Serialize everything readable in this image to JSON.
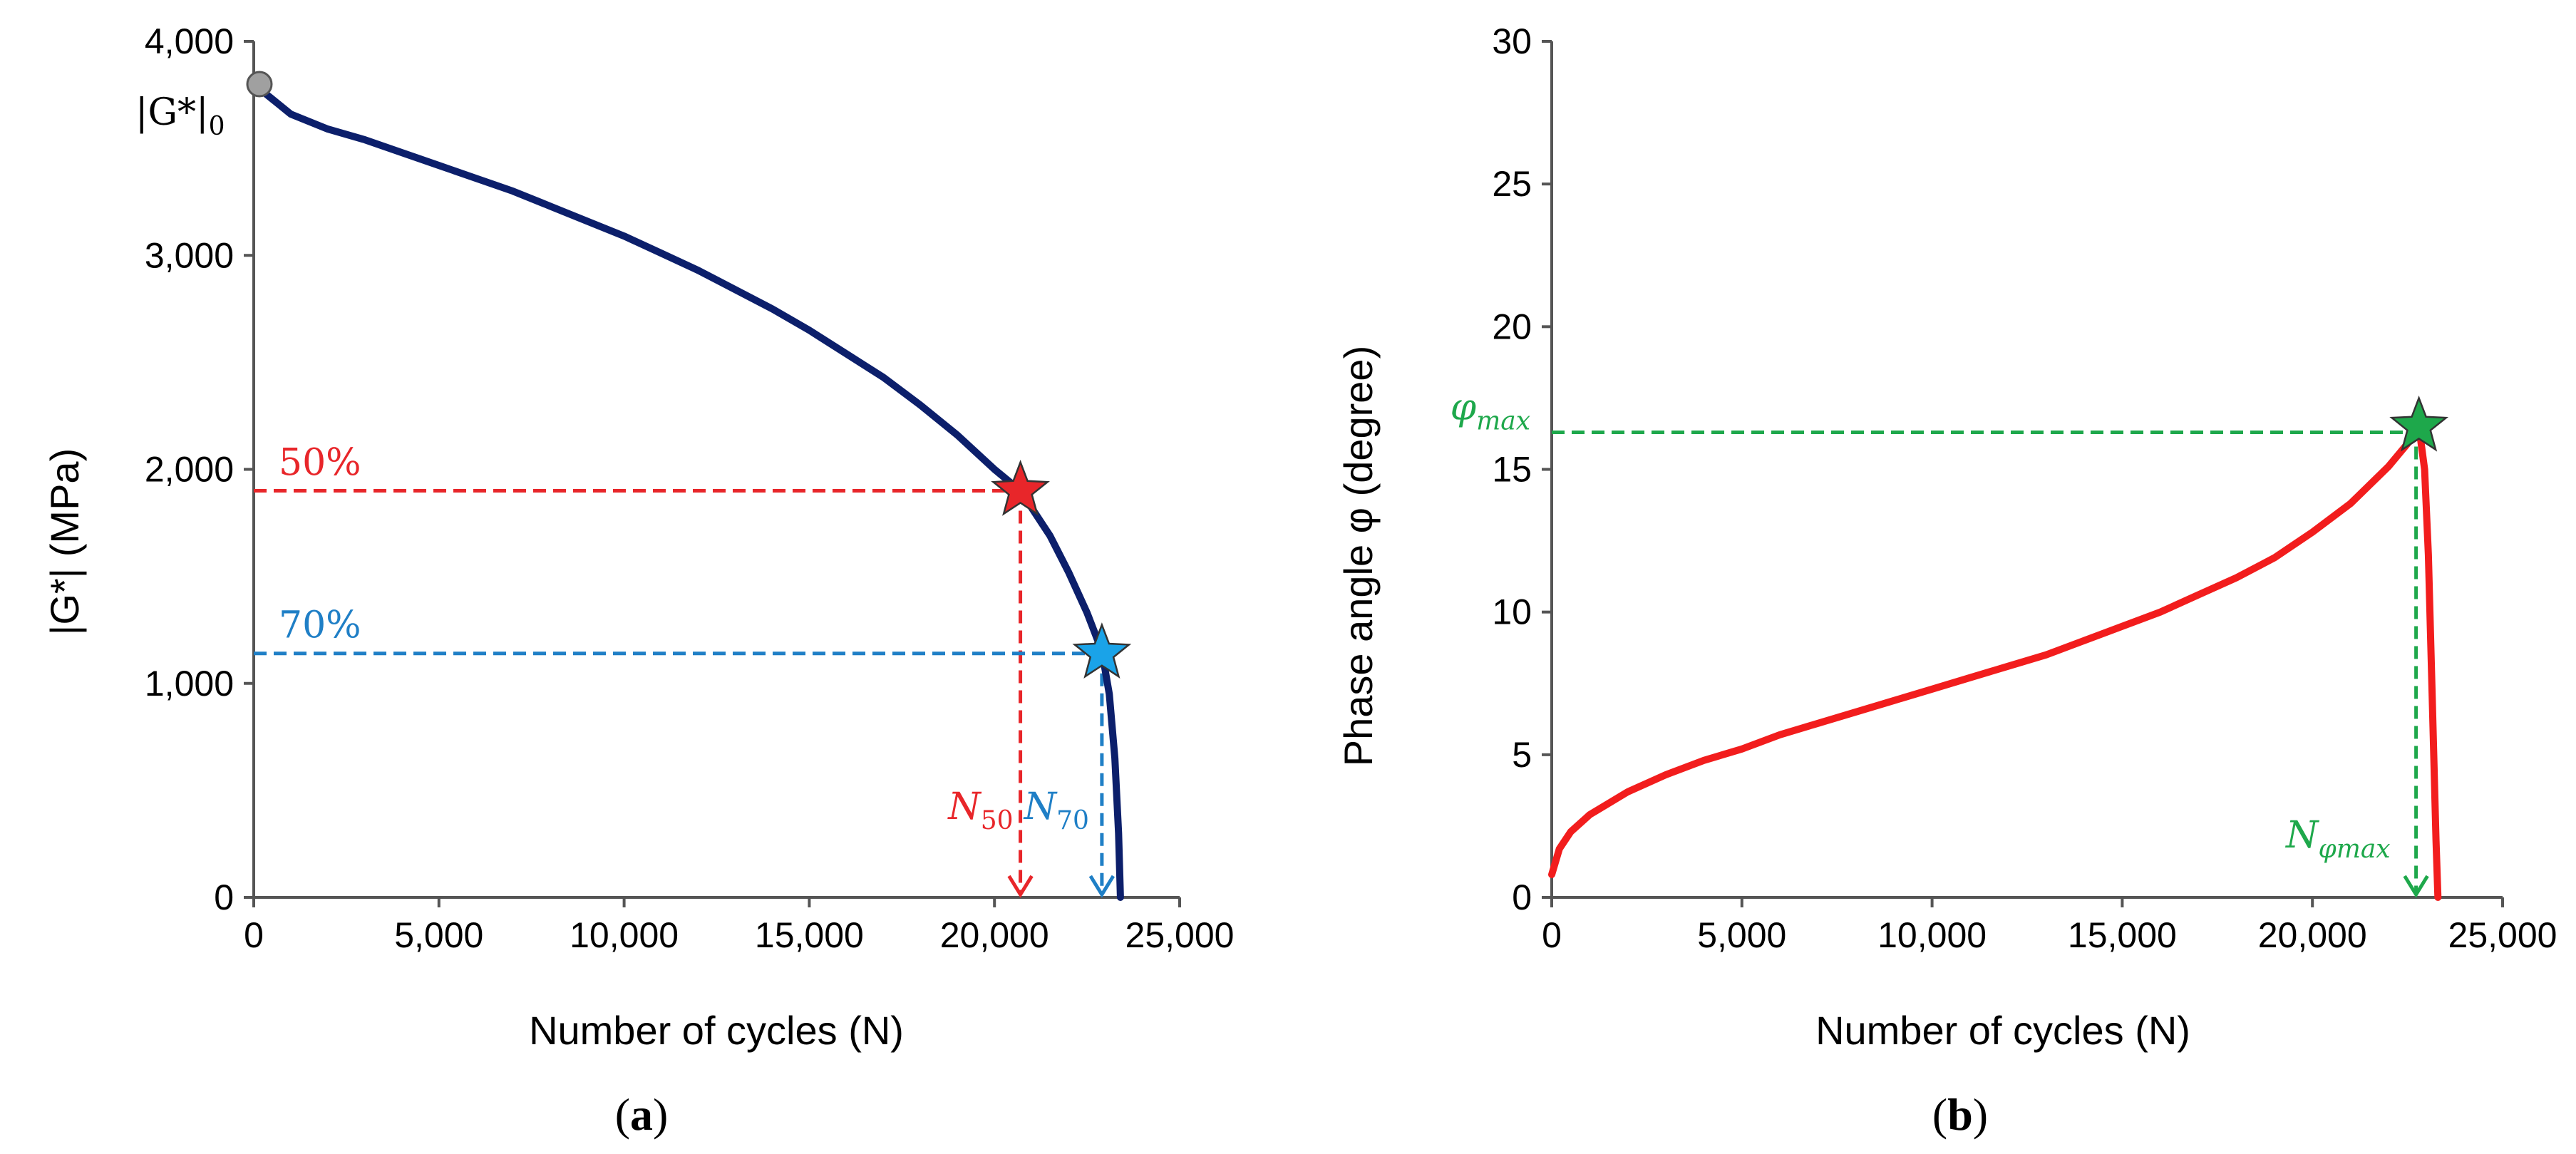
{
  "chart_data": [
    {
      "type": "line",
      "panel_label_prefix": "(",
      "panel_label_letter": "a",
      "panel_label_suffix": ")",
      "xlabel": "Number of cycles (N)",
      "ylabel": "|G*| (MPa)",
      "xlim": [
        0,
        25000
      ],
      "ylim": [
        0,
        4000
      ],
      "x_ticks": [
        0,
        5000,
        10000,
        15000,
        20000,
        25000
      ],
      "x_tick_labels": [
        "0",
        "5,000",
        "10,000",
        "15,000",
        "20,000",
        "25,000"
      ],
      "y_ticks": [
        0,
        1000,
        2000,
        3000,
        4000
      ],
      "y_tick_labels": [
        "0",
        "1,000",
        "2,000",
        "3,000",
        "4,000"
      ],
      "grid": false,
      "series": [
        {
          "color": "#0c1f6b",
          "x": [
            0,
            1000,
            2000,
            3000,
            4000,
            5000,
            6000,
            7000,
            8000,
            9000,
            10000,
            11000,
            12000,
            13000,
            14000,
            15000,
            16000,
            17000,
            18000,
            19000,
            20000,
            20700,
            21500,
            22000,
            22500,
            22900,
            23100,
            23250,
            23350,
            23400
          ],
          "y": [
            3800,
            3660,
            3590,
            3540,
            3480,
            3420,
            3360,
            3300,
            3230,
            3160,
            3090,
            3010,
            2930,
            2840,
            2750,
            2650,
            2540,
            2430,
            2300,
            2160,
            2000,
            1900,
            1690,
            1520,
            1330,
            1150,
            950,
            650,
            300,
            0
          ]
        }
      ],
      "initial_point": {
        "x": 0,
        "y": 3800,
        "color": "#a0a0a0"
      },
      "initial_label_main": "|G*|",
      "initial_label_sub": "0",
      "markers": [
        {
          "x": 20700,
          "y": 1900,
          "color": "#e8262a",
          "level_label": "50%",
          "n_label_main": "N",
          "n_label_sub": "50"
        },
        {
          "x": 22900,
          "y": 1140,
          "color": "#1aa3e8",
          "level_label": "70%",
          "n_label_main": "N",
          "n_label_sub": "70"
        }
      ],
      "dash_colors": [
        "#e8262a",
        "#1f7fc6"
      ]
    },
    {
      "type": "line",
      "panel_label_prefix": "(",
      "panel_label_letter": "b",
      "panel_label_suffix": ")",
      "xlabel": "Number of cycles (N)",
      "ylabel": "Phase angle φ (degree)",
      "xlim": [
        0,
        25000
      ],
      "ylim": [
        0,
        30
      ],
      "x_ticks": [
        0,
        5000,
        10000,
        15000,
        20000,
        25000
      ],
      "x_tick_labels": [
        "0",
        "5,000",
        "10,000",
        "15,000",
        "20,000",
        "25,000"
      ],
      "y_ticks": [
        0,
        5,
        10,
        15,
        20,
        25,
        30
      ],
      "y_tick_labels": [
        "0",
        "5",
        "10",
        "15",
        "20",
        "25",
        "30"
      ],
      "grid": false,
      "series": [
        {
          "color": "#f21d1d",
          "x": [
            0,
            200,
            500,
            1000,
            2000,
            3000,
            4000,
            5000,
            6000,
            7000,
            8000,
            9000,
            10000,
            11000,
            12000,
            13000,
            14000,
            15000,
            16000,
            17000,
            18000,
            19000,
            20000,
            21000,
            22000,
            22500,
            22800,
            22950,
            23050,
            23150,
            23250,
            23300
          ],
          "y": [
            0.8,
            1.7,
            2.3,
            2.9,
            3.7,
            4.3,
            4.8,
            5.2,
            5.7,
            6.1,
            6.5,
            6.9,
            7.3,
            7.7,
            8.1,
            8.5,
            9.0,
            9.5,
            10.0,
            10.6,
            11.2,
            11.9,
            12.8,
            13.8,
            15.1,
            15.9,
            16.5,
            15.0,
            12.0,
            7.0,
            2.0,
            0
          ]
        }
      ],
      "markers": [
        {
          "x": 22800,
          "y": 16.5,
          "color": "#1ea84b",
          "level_label_main": "φ",
          "level_label_sub": "max",
          "n_label_main": "N",
          "n_label_sub": "φmax"
        }
      ],
      "dash_colors": [
        "#1ea84b"
      ]
    }
  ]
}
